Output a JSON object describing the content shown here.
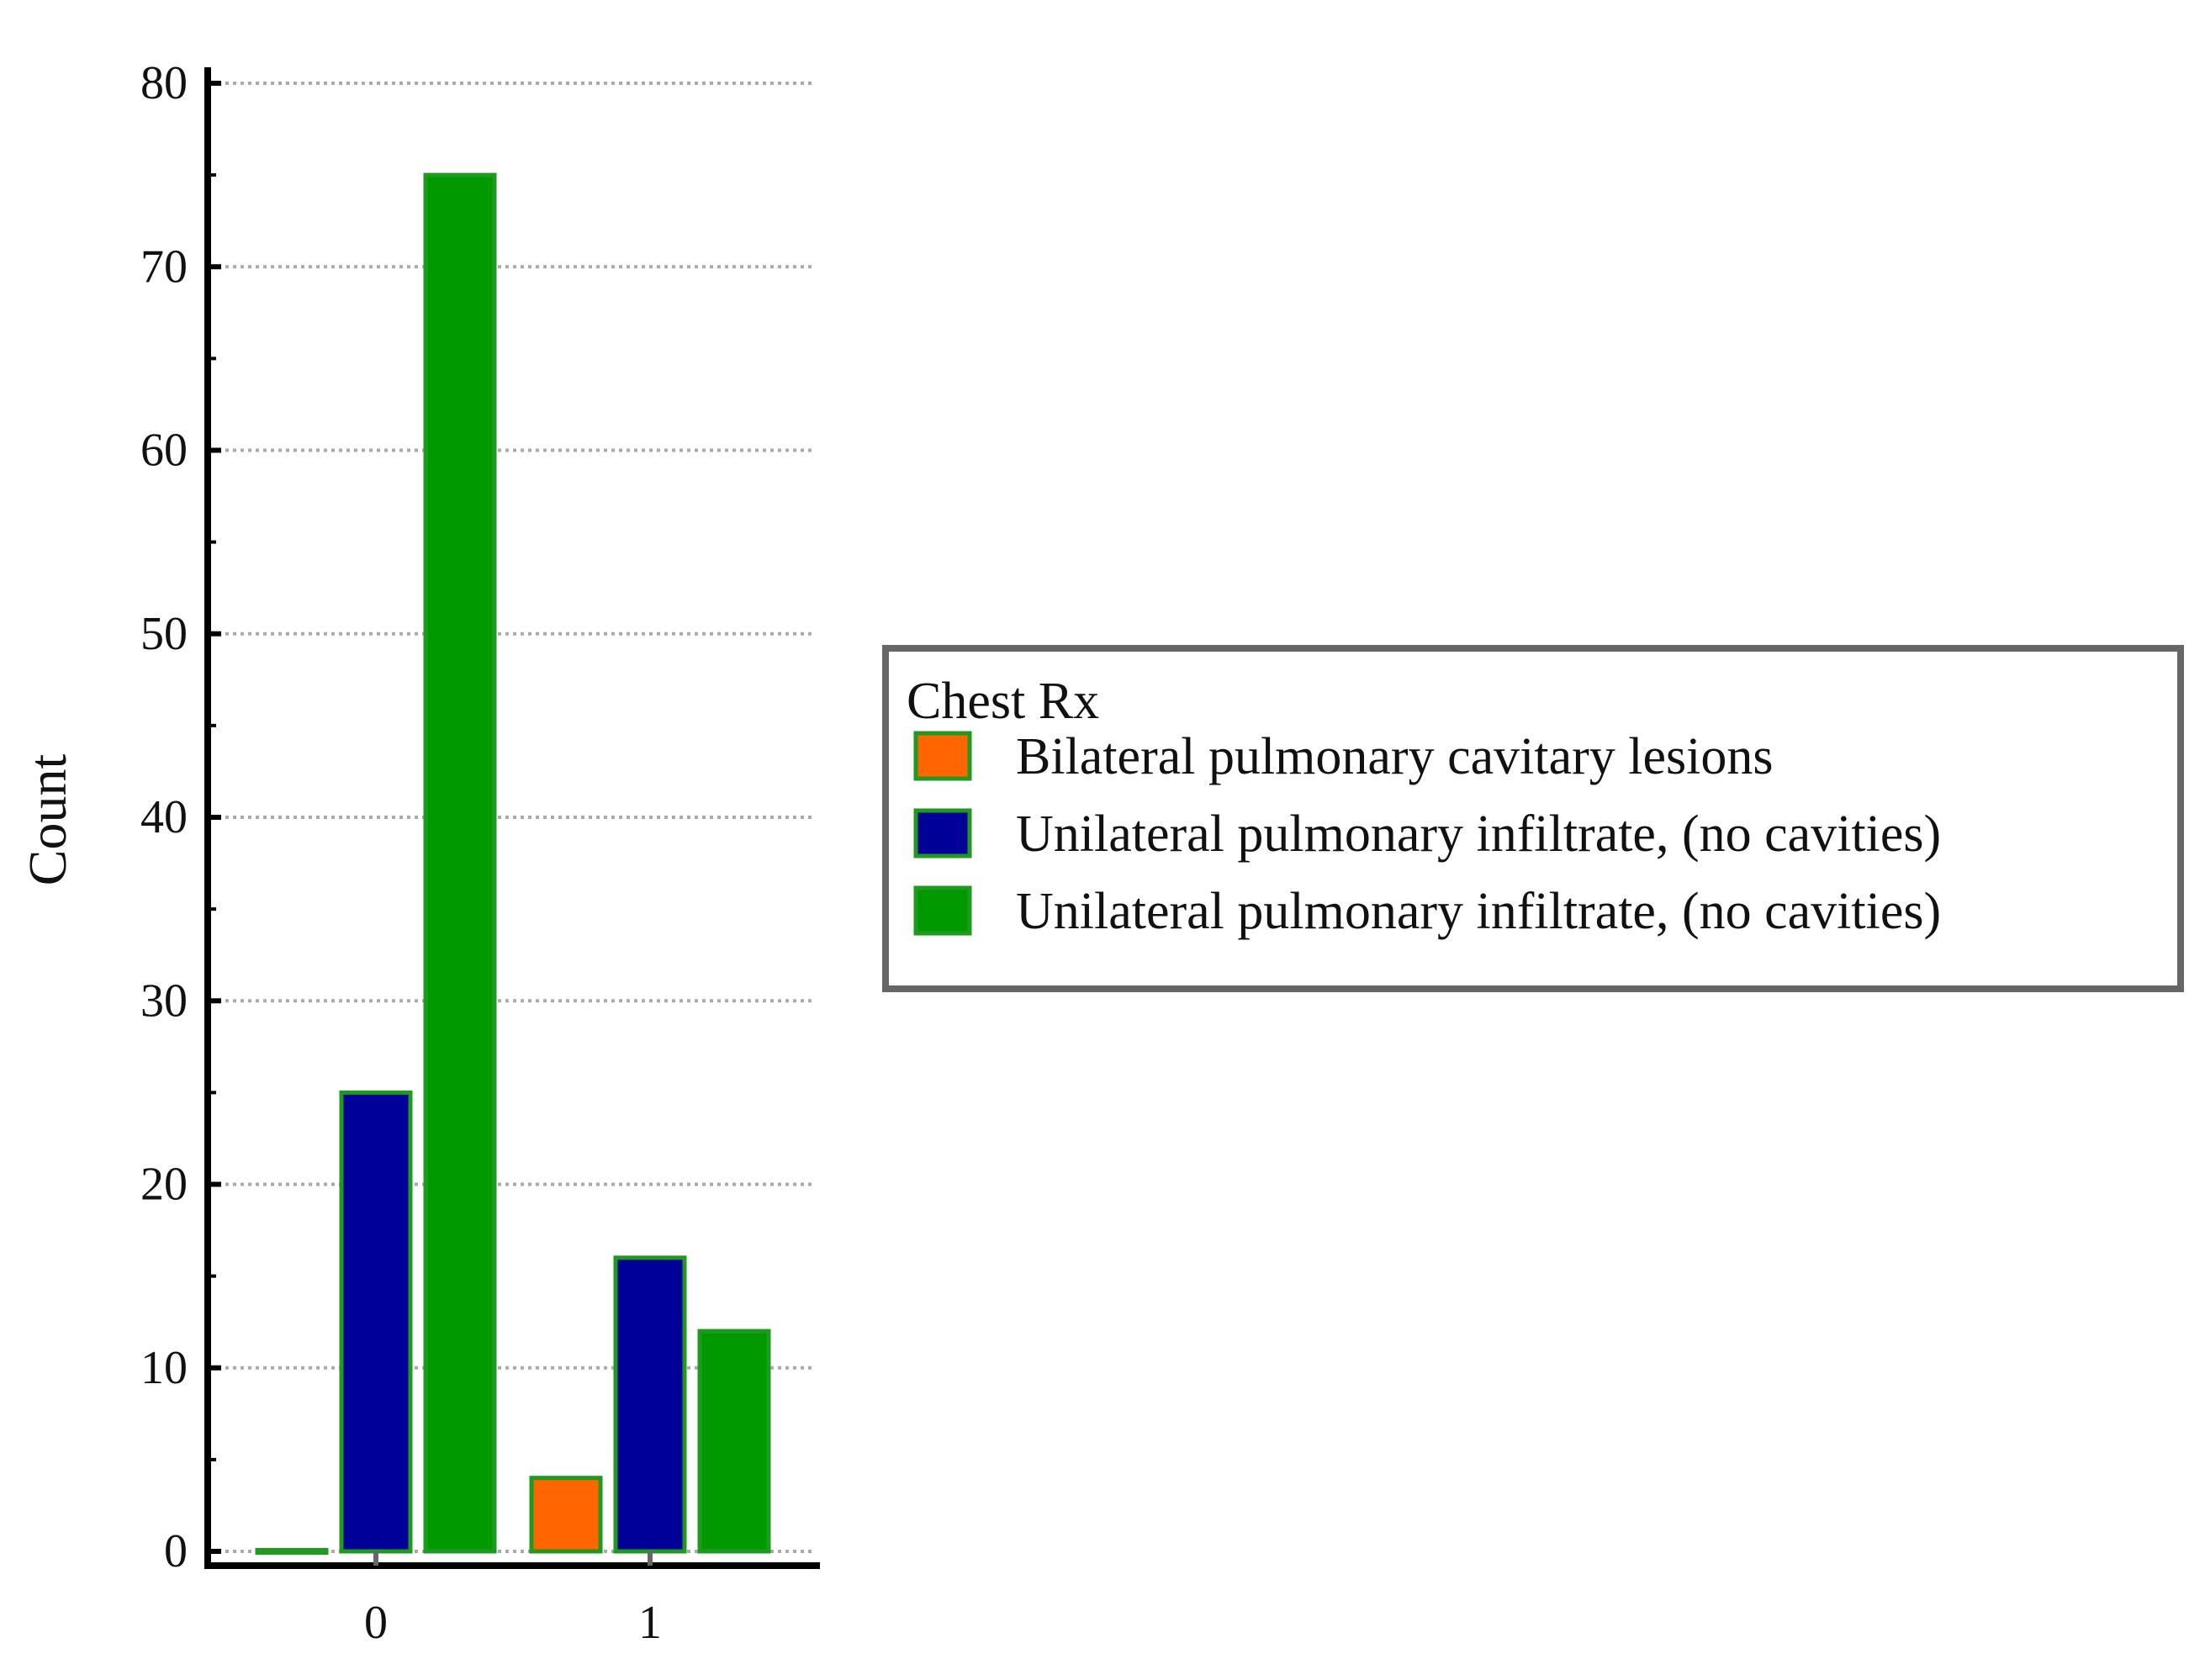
{
  "chart_data": {
    "type": "bar",
    "title": "",
    "xlabel": "",
    "ylabel": "Count",
    "categories": [
      "0",
      "1"
    ],
    "ylim": [
      0,
      80
    ],
    "yticks": [
      0,
      10,
      20,
      30,
      40,
      50,
      60,
      70,
      80
    ],
    "grid": true,
    "legend": {
      "title": "Chest Rx",
      "placement": "right"
    },
    "series": [
      {
        "name": "Bilateral pulmonary cavitary lesions",
        "values": [
          0,
          4
        ],
        "color": "#ff6600"
      },
      {
        "name": "Unilateral pulmonary infiltrate, (no cavities)",
        "values": [
          25,
          16
        ],
        "color": "#000099"
      },
      {
        "name": "Unilateral pulmonary infiltrate, (no cavities)",
        "values": [
          75,
          12
        ],
        "color": "#009900"
      }
    ],
    "bar_outline_color": "#1f9a1f",
    "grid_color": "#aaaaaa",
    "axis_color": "#000000",
    "legend_border_color": "#666666"
  }
}
